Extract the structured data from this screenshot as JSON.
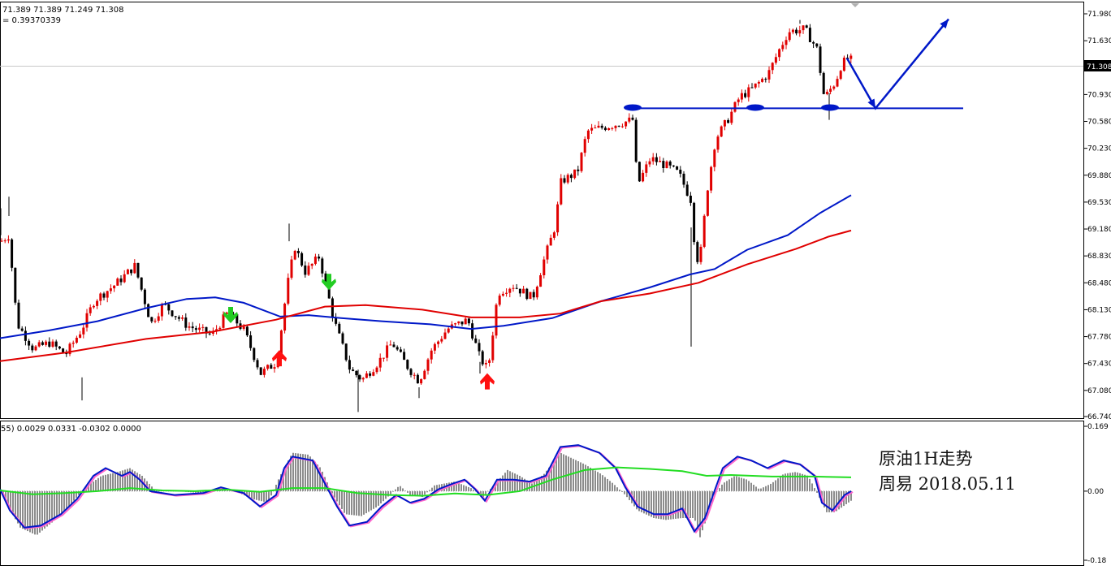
{
  "header": {
    "ohlc_line": "71.389 71.389 71.249 71.308",
    "value_line": "= 0.39370339"
  },
  "sub_header": {
    "macd_line": "55) 0.0029 0.0331 -0.0302 0.0000"
  },
  "annotation": {
    "line1": "原油1H走势",
    "line2": "周易 2018.05.11"
  },
  "colors": {
    "bull": "#e00000",
    "bear": "#000000",
    "ma_blue": "#0018c8",
    "ma_red": "#e00000",
    "signal_green": "#22dd22",
    "macd_pink": "#ff66cc",
    "hist": "#8c8c8c",
    "markup": "#0018c8"
  },
  "chart_data": [
    {
      "type": "candlestick",
      "price_axis": {
        "ylim": [
          66.74,
          71.98
        ],
        "ticks": [
          "71.980",
          "71.630",
          "71.280",
          "70.930",
          "70.580",
          "70.230",
          "69.880",
          "69.530",
          "69.180",
          "68.830",
          "68.480",
          "68.130",
          "67.780",
          "67.430",
          "67.080",
          "66.740"
        ],
        "current_price": "71.308"
      },
      "series": [
        {
          "name": "MA blue",
          "color": "#0018c8",
          "values": [
            [
              0,
              67.76
            ],
            [
              60,
              67.86
            ],
            [
              120,
              67.98
            ],
            [
              180,
              68.15
            ],
            [
              230,
              68.27
            ],
            [
              265,
              68.29
            ],
            [
              300,
              68.22
            ],
            [
              345,
              68.04
            ],
            [
              380,
              68.06
            ],
            [
              420,
              68.02
            ],
            [
              470,
              67.98
            ],
            [
              530,
              67.94
            ],
            [
              580,
              67.88
            ],
            [
              620,
              67.92
            ],
            [
              680,
              68.02
            ],
            [
              740,
              68.24
            ],
            [
              800,
              68.42
            ],
            [
              850,
              68.59
            ],
            [
              880,
              68.66
            ],
            [
              920,
              68.91
            ],
            [
              970,
              69.1
            ],
            [
              1010,
              69.39
            ],
            [
              1048,
              69.62
            ]
          ]
        },
        {
          "name": "MA red",
          "color": "#e00000",
          "values": [
            [
              0,
              67.46
            ],
            [
              80,
              67.57
            ],
            [
              180,
              67.75
            ],
            [
              260,
              67.84
            ],
            [
              340,
              68.0
            ],
            [
              400,
              68.17
            ],
            [
              450,
              68.19
            ],
            [
              520,
              68.13
            ],
            [
              580,
              68.03
            ],
            [
              640,
              68.03
            ],
            [
              690,
              68.08
            ],
            [
              740,
              68.24
            ],
            [
              800,
              68.34
            ],
            [
              860,
              68.48
            ],
            [
              920,
              68.72
            ],
            [
              980,
              68.92
            ],
            [
              1020,
              69.08
            ],
            [
              1048,
              69.16
            ]
          ]
        }
      ],
      "horizontal_level": 70.75,
      "markup_path": [
        [
          1043,
          71.4
        ],
        [
          1078,
          70.75
        ],
        [
          1168,
          71.91
        ]
      ],
      "markup_ellipses": [
        [
          779,
          70.76
        ],
        [
          930,
          70.76
        ],
        [
          1022,
          70.76
        ]
      ],
      "signal_arrows": [
        {
          "dir": "down",
          "color": "green",
          "x": 284,
          "price": 68.04
        },
        {
          "dir": "down",
          "color": "green",
          "x": 405,
          "price": 68.47
        },
        {
          "dir": "up",
          "color": "red",
          "x": 344,
          "price": 67.52
        },
        {
          "dir": "up",
          "color": "red",
          "x": 600,
          "price": 67.22
        }
      ],
      "candle_path": [
        [
          0,
          69.02
        ],
        [
          10,
          69.1
        ],
        [
          20,
          67.95
        ],
        [
          40,
          67.62
        ],
        [
          60,
          67.7
        ],
        [
          80,
          67.55
        ],
        [
          100,
          67.88
        ],
        [
          115,
          68.25
        ],
        [
          140,
          68.45
        ],
        [
          165,
          68.7
        ],
        [
          185,
          67.95
        ],
        [
          200,
          68.2
        ],
        [
          230,
          67.92
        ],
        [
          260,
          67.8
        ],
        [
          280,
          68.1
        ],
        [
          300,
          67.85
        ],
        [
          320,
          67.3
        ],
        [
          340,
          67.45
        ],
        [
          352,
          68.4
        ],
        [
          362,
          68.95
        ],
        [
          375,
          68.62
        ],
        [
          392,
          68.82
        ],
        [
          410,
          68.0
        ],
        [
          430,
          67.35
        ],
        [
          445,
          67.22
        ],
        [
          465,
          67.45
        ],
        [
          482,
          67.7
        ],
        [
          500,
          67.4
        ],
        [
          515,
          67.2
        ],
        [
          530,
          67.6
        ],
        [
          550,
          67.88
        ],
        [
          575,
          68.0
        ],
        [
          590,
          67.5
        ],
        [
          600,
          67.35
        ],
        [
          612,
          68.35
        ],
        [
          630,
          68.45
        ],
        [
          655,
          68.28
        ],
        [
          668,
          68.75
        ],
        [
          682,
          69.2
        ],
        [
          690,
          69.8
        ],
        [
          710,
          69.92
        ],
        [
          722,
          70.45
        ],
        [
          740,
          70.5
        ],
        [
          760,
          70.55
        ],
        [
          778,
          70.6
        ],
        [
          784,
          69.75
        ],
        [
          800,
          70.1
        ],
        [
          820,
          70.0
        ],
        [
          835,
          69.9
        ],
        [
          850,
          69.55
        ],
        [
          856,
          68.75
        ],
        [
          862,
          68.9
        ],
        [
          870,
          69.7
        ],
        [
          880,
          70.35
        ],
        [
          895,
          70.6
        ],
        [
          910,
          70.9
        ],
        [
          925,
          71.0
        ],
        [
          945,
          71.2
        ],
        [
          958,
          71.5
        ],
        [
          970,
          71.75
        ],
        [
          990,
          71.78
        ],
        [
          1005,
          71.52
        ],
        [
          1014,
          70.88
        ],
        [
          1028,
          71.1
        ],
        [
          1035,
          71.32
        ],
        [
          1045,
          71.42
        ],
        [
          1050,
          71.3
        ]
      ],
      "candle_spikes": [
        [
          0,
          69.1,
          69.45
        ],
        [
          10,
          69.35,
          69.6
        ],
        [
          100,
          67.25,
          66.95
        ],
        [
          355,
          69.02,
          69.25
        ],
        [
          440,
          67.35,
          66.8
        ],
        [
          515,
          67.12,
          66.98
        ],
        [
          590,
          67.3,
          67.45
        ],
        [
          850,
          69.2,
          67.65
        ],
        [
          984,
          71.85,
          71.9
        ],
        [
          1020,
          70.95,
          70.6
        ]
      ]
    },
    {
      "type": "bar",
      "title": "MACD",
      "ylim": [
        -0.18,
        0.169
      ],
      "ticks": [
        "0.169",
        "0.00",
        "-0.18"
      ],
      "hist_path": [
        [
          0,
          0.01
        ],
        [
          10,
          -0.04
        ],
        [
          25,
          -0.095
        ],
        [
          45,
          -0.115
        ],
        [
          65,
          -0.08
        ],
        [
          85,
          -0.04
        ],
        [
          105,
          0.01
        ],
        [
          125,
          0.04
        ],
        [
          145,
          0.05
        ],
        [
          160,
          0.06
        ],
        [
          175,
          0.04
        ],
        [
          190,
          0.005
        ],
        [
          220,
          0.0
        ],
        [
          245,
          -0.005
        ],
        [
          270,
          0.008
        ],
        [
          290,
          0.0
        ],
        [
          310,
          -0.02
        ],
        [
          330,
          -0.03
        ],
        [
          345,
          0.04
        ],
        [
          360,
          0.1
        ],
        [
          380,
          0.095
        ],
        [
          395,
          0.06
        ],
        [
          410,
          -0.01
        ],
        [
          425,
          -0.06
        ],
        [
          445,
          -0.065
        ],
        [
          465,
          -0.04
        ],
        [
          480,
          -0.01
        ],
        [
          492,
          0.015
        ],
        [
          505,
          -0.01
        ],
        [
          520,
          -0.015
        ],
        [
          535,
          0.015
        ],
        [
          560,
          0.025
        ],
        [
          580,
          0.008
        ],
        [
          595,
          -0.015
        ],
        [
          610,
          0.02
        ],
        [
          625,
          0.055
        ],
        [
          640,
          0.04
        ],
        [
          655,
          0.02
        ],
        [
          670,
          0.045
        ],
        [
          690,
          0.1
        ],
        [
          705,
          0.085
        ],
        [
          720,
          0.07
        ],
        [
          740,
          0.045
        ],
        [
          755,
          0.02
        ],
        [
          770,
          -0.01
        ],
        [
          785,
          -0.05
        ],
        [
          805,
          -0.07
        ],
        [
          820,
          -0.075
        ],
        [
          840,
          -0.07
        ],
        [
          855,
          -0.07
        ],
        [
          862,
          -0.12
        ],
        [
          872,
          -0.06
        ],
        [
          880,
          -0.01
        ],
        [
          890,
          0.02
        ],
        [
          905,
          0.04
        ],
        [
          920,
          0.03
        ],
        [
          935,
          0.005
        ],
        [
          950,
          0.02
        ],
        [
          965,
          0.045
        ],
        [
          980,
          0.05
        ],
        [
          995,
          0.04
        ],
        [
          1005,
          0.0
        ],
        [
          1018,
          -0.055
        ],
        [
          1028,
          -0.055
        ],
        [
          1038,
          -0.04
        ],
        [
          1048,
          -0.025
        ]
      ],
      "series": [
        {
          "name": "MACD",
          "color": "#0018c8",
          "values": [
            [
              0,
              0.005
            ],
            [
              12,
              -0.05
            ],
            [
              30,
              -0.095
            ],
            [
              50,
              -0.09
            ],
            [
              75,
              -0.06
            ],
            [
              95,
              -0.02
            ],
            [
              115,
              0.04
            ],
            [
              130,
              0.06
            ],
            [
              150,
              0.04
            ],
            [
              160,
              0.05
            ],
            [
              172,
              0.03
            ],
            [
              185,
              0.0
            ],
            [
              215,
              -0.01
            ],
            [
              250,
              -0.005
            ],
            [
              272,
              0.01
            ],
            [
              300,
              -0.005
            ],
            [
              320,
              -0.04
            ],
            [
              340,
              -0.01
            ],
            [
              350,
              0.06
            ],
            [
              360,
              0.09
            ],
            [
              385,
              0.08
            ],
            [
              400,
              0.02
            ],
            [
              415,
              -0.04
            ],
            [
              430,
              -0.09
            ],
            [
              452,
              -0.08
            ],
            [
              470,
              -0.04
            ],
            [
              488,
              -0.01
            ],
            [
              505,
              -0.03
            ],
            [
              522,
              -0.02
            ],
            [
              540,
              0.005
            ],
            [
              558,
              0.02
            ],
            [
              572,
              0.03
            ],
            [
              585,
              0.005
            ],
            [
              597,
              -0.025
            ],
            [
              612,
              0.03
            ],
            [
              632,
              0.03
            ],
            [
              652,
              0.025
            ],
            [
              672,
              0.04
            ],
            [
              690,
              0.115
            ],
            [
              712,
              0.12
            ],
            [
              738,
              0.1
            ],
            [
              758,
              0.06
            ],
            [
              770,
              0.01
            ],
            [
              785,
              -0.04
            ],
            [
              805,
              -0.06
            ],
            [
              822,
              -0.06
            ],
            [
              840,
              -0.045
            ],
            [
              855,
              -0.105
            ],
            [
              868,
              -0.07
            ],
            [
              878,
              -0.01
            ],
            [
              890,
              0.06
            ],
            [
              908,
              0.09
            ],
            [
              925,
              0.08
            ],
            [
              945,
              0.06
            ],
            [
              965,
              0.08
            ],
            [
              985,
              0.07
            ],
            [
              1003,
              0.04
            ],
            [
              1012,
              -0.03
            ],
            [
              1025,
              -0.05
            ],
            [
              1040,
              -0.01
            ],
            [
              1048,
              0.0
            ]
          ]
        },
        {
          "name": "Signal",
          "color": "#22dd22",
          "values": [
            [
              0,
              0.002
            ],
            [
              40,
              -0.008
            ],
            [
              80,
              -0.005
            ],
            [
              120,
              0.0
            ],
            [
              160,
              0.008
            ],
            [
              200,
              0.002
            ],
            [
              240,
              0.0
            ],
            [
              280,
              0.004
            ],
            [
              320,
              -0.002
            ],
            [
              360,
              0.008
            ],
            [
              400,
              0.008
            ],
            [
              440,
              -0.005
            ],
            [
              480,
              -0.01
            ],
            [
              520,
              -0.012
            ],
            [
              560,
              -0.006
            ],
            [
              600,
              -0.01
            ],
            [
              640,
              0.0
            ],
            [
              680,
              0.03
            ],
            [
              720,
              0.055
            ],
            [
              760,
              0.062
            ],
            [
              800,
              0.058
            ],
            [
              840,
              0.052
            ],
            [
              870,
              0.04
            ],
            [
              900,
              0.042
            ],
            [
              950,
              0.038
            ],
            [
              1000,
              0.038
            ],
            [
              1048,
              0.036
            ]
          ]
        }
      ]
    }
  ]
}
